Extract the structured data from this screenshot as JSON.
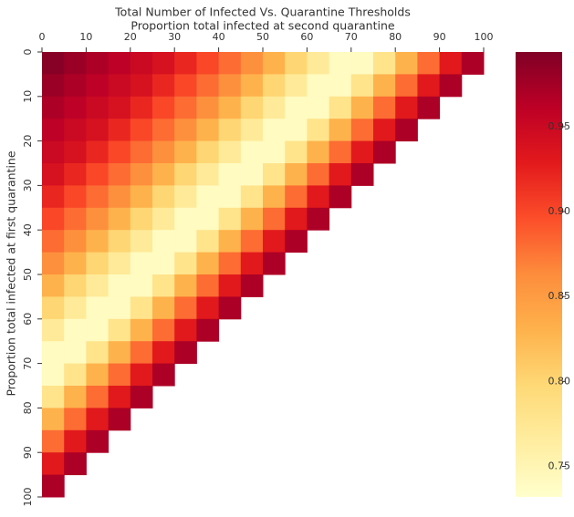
{
  "chart_data": {
    "type": "heatmap",
    "title": "Total Number of Infected Vs. Quarantine Thresholds",
    "x_label": "Proportion total infected at second quarantine",
    "y_label": "Proportion total infected at first quarantine",
    "xlim": [
      0,
      100
    ],
    "ylim": [
      0,
      100
    ],
    "xticks": [
      0,
      10,
      20,
      30,
      40,
      50,
      60,
      70,
      80,
      90,
      100
    ],
    "yticks": [
      0,
      10,
      20,
      30,
      40,
      50,
      60,
      70,
      80,
      90,
      100
    ],
    "zlim": [
      0.732,
      0.994
    ],
    "colorbar_ticks": [
      0.75,
      0.8,
      0.85,
      0.9,
      0.95
    ],
    "colorbar_tick_labels": [
      "0.75",
      "0.80",
      "0.85",
      "0.90",
      "0.95"
    ],
    "colorscale": [
      "#ffffcc",
      "#ffeda0",
      "#fed976",
      "#feb24c",
      "#fd8d3c",
      "#fc4e2a",
      "#e31a1c",
      "#bd0026",
      "#800026"
    ],
    "z": [
      [
        0.99,
        0.98,
        0.97,
        0.96,
        0.95,
        0.94,
        0.92,
        0.9,
        0.88,
        0.86,
        0.83,
        0.8,
        0.77,
        0.74,
        0.74,
        0.78,
        0.83,
        0.88,
        0.93,
        0.97
      ],
      [
        0.98,
        0.97,
        0.96,
        0.95,
        0.94,
        0.92,
        0.9,
        0.88,
        0.86,
        0.83,
        0.8,
        0.77,
        0.74,
        0.74,
        0.78,
        0.83,
        0.88,
        0.93,
        0.97,
        null
      ],
      [
        0.97,
        0.96,
        0.95,
        0.94,
        0.92,
        0.9,
        0.88,
        0.86,
        0.83,
        0.8,
        0.77,
        0.74,
        0.74,
        0.78,
        0.83,
        0.88,
        0.93,
        0.97,
        null,
        null
      ],
      [
        0.96,
        0.95,
        0.94,
        0.92,
        0.9,
        0.88,
        0.86,
        0.83,
        0.8,
        0.77,
        0.74,
        0.74,
        0.78,
        0.83,
        0.88,
        0.93,
        0.97,
        null,
        null,
        null
      ],
      [
        0.95,
        0.94,
        0.92,
        0.9,
        0.88,
        0.86,
        0.83,
        0.8,
        0.77,
        0.74,
        0.74,
        0.78,
        0.83,
        0.88,
        0.93,
        0.97,
        null,
        null,
        null,
        null
      ],
      [
        0.94,
        0.92,
        0.9,
        0.88,
        0.86,
        0.83,
        0.8,
        0.77,
        0.74,
        0.74,
        0.78,
        0.83,
        0.88,
        0.93,
        0.97,
        null,
        null,
        null,
        null,
        null
      ],
      [
        0.92,
        0.9,
        0.88,
        0.86,
        0.83,
        0.8,
        0.77,
        0.74,
        0.74,
        0.78,
        0.83,
        0.88,
        0.93,
        0.97,
        null,
        null,
        null,
        null,
        null,
        null
      ],
      [
        0.9,
        0.88,
        0.86,
        0.83,
        0.8,
        0.77,
        0.74,
        0.74,
        0.78,
        0.83,
        0.88,
        0.93,
        0.97,
        null,
        null,
        null,
        null,
        null,
        null,
        null
      ],
      [
        0.88,
        0.86,
        0.83,
        0.8,
        0.77,
        0.74,
        0.74,
        0.78,
        0.83,
        0.88,
        0.93,
        0.97,
        null,
        null,
        null,
        null,
        null,
        null,
        null,
        null
      ],
      [
        0.86,
        0.83,
        0.8,
        0.77,
        0.74,
        0.74,
        0.78,
        0.83,
        0.88,
        0.93,
        0.97,
        null,
        null,
        null,
        null,
        null,
        null,
        null,
        null,
        null
      ],
      [
        0.83,
        0.8,
        0.77,
        0.74,
        0.74,
        0.78,
        0.83,
        0.88,
        0.93,
        0.97,
        null,
        null,
        null,
        null,
        null,
        null,
        null,
        null,
        null,
        null
      ],
      [
        0.8,
        0.77,
        0.74,
        0.74,
        0.78,
        0.83,
        0.88,
        0.93,
        0.97,
        null,
        null,
        null,
        null,
        null,
        null,
        null,
        null,
        null,
        null,
        null
      ],
      [
        0.77,
        0.74,
        0.74,
        0.78,
        0.83,
        0.88,
        0.93,
        0.97,
        null,
        null,
        null,
        null,
        null,
        null,
        null,
        null,
        null,
        null,
        null,
        null
      ],
      [
        0.74,
        0.74,
        0.78,
        0.83,
        0.88,
        0.93,
        0.97,
        null,
        null,
        null,
        null,
        null,
        null,
        null,
        null,
        null,
        null,
        null,
        null,
        null
      ],
      [
        0.74,
        0.78,
        0.83,
        0.88,
        0.93,
        0.97,
        null,
        null,
        null,
        null,
        null,
        null,
        null,
        null,
        null,
        null,
        null,
        null,
        null,
        null
      ],
      [
        0.78,
        0.83,
        0.88,
        0.93,
        0.97,
        null,
        null,
        null,
        null,
        null,
        null,
        null,
        null,
        null,
        null,
        null,
        null,
        null,
        null,
        null
      ],
      [
        0.83,
        0.88,
        0.93,
        0.97,
        null,
        null,
        null,
        null,
        null,
        null,
        null,
        null,
        null,
        null,
        null,
        null,
        null,
        null,
        null,
        null
      ],
      [
        0.88,
        0.93,
        0.97,
        null,
        null,
        null,
        null,
        null,
        null,
        null,
        null,
        null,
        null,
        null,
        null,
        null,
        null,
        null,
        null,
        null
      ],
      [
        0.93,
        0.97,
        null,
        null,
        null,
        null,
        null,
        null,
        null,
        null,
        null,
        null,
        null,
        null,
        null,
        null,
        null,
        null,
        null,
        null
      ],
      [
        0.97,
        null,
        null,
        null,
        null,
        null,
        null,
        null,
        null,
        null,
        null,
        null,
        null,
        null,
        null,
        null,
        null,
        null,
        null,
        null
      ]
    ]
  }
}
